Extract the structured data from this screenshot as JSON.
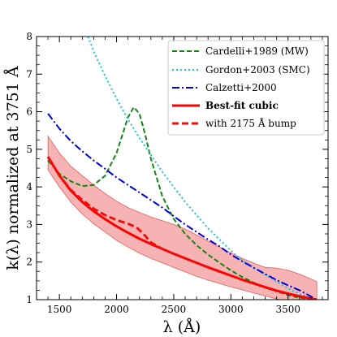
{
  "chart_data": {
    "type": "line",
    "xlabel": "λ (Å)",
    "ylabel": "k(λ) normalized at 3751 Å",
    "xlim": [
      1300,
      3850
    ],
    "ylim": [
      1,
      8
    ],
    "xticks": [
      1500,
      2000,
      2500,
      3000,
      3500
    ],
    "yticks": [
      1,
      2,
      3,
      4,
      5,
      6,
      7,
      8
    ],
    "legend_position": "top-right",
    "series": [
      {
        "name": "Cardelli+1989 (MW)",
        "color": "#118811",
        "style": "dashed",
        "x": [
          1400,
          1500,
          1600,
          1700,
          1800,
          1900,
          2000,
          2100,
          2150,
          2200,
          2250,
          2300,
          2400,
          2500,
          2600,
          2700,
          2800,
          2900,
          3000,
          3100,
          3200,
          3300,
          3400,
          3500,
          3600,
          3751
        ],
        "y": [
          4.7,
          4.35,
          4.15,
          4.02,
          4.05,
          4.3,
          4.9,
          5.85,
          6.12,
          5.95,
          5.4,
          4.75,
          3.75,
          3.15,
          2.75,
          2.45,
          2.2,
          1.98,
          1.78,
          1.6,
          1.45,
          1.33,
          1.22,
          1.12,
          1.05,
          1.0
        ]
      },
      {
        "name": "Gordon+2003 (SMC)",
        "color": "#18c8c8",
        "style": "dotted",
        "x": [
          1750,
          1800,
          1900,
          2000,
          2100,
          2200,
          2300,
          2400,
          2500,
          2600,
          2700,
          2800,
          2900,
          3000,
          3100,
          3200,
          3300,
          3400,
          3500,
          3600,
          3751
        ],
        "y": [
          8.0,
          7.6,
          6.95,
          6.35,
          5.8,
          5.3,
          4.85,
          4.4,
          4.0,
          3.6,
          3.25,
          2.9,
          2.6,
          2.3,
          2.05,
          1.85,
          1.66,
          1.48,
          1.3,
          1.15,
          1.0
        ]
      },
      {
        "name": "Calzetti+2000",
        "color": "#0000dd",
        "style": "dashdot",
        "x": [
          1400,
          1500,
          1600,
          1700,
          1800,
          1900,
          2000,
          2100,
          2200,
          2300,
          2400,
          2500,
          2600,
          2700,
          2800,
          2900,
          3000,
          3100,
          3200,
          3300,
          3400,
          3500,
          3600,
          3751
        ],
        "y": [
          5.95,
          5.55,
          5.22,
          4.95,
          4.7,
          4.48,
          4.25,
          4.05,
          3.85,
          3.65,
          3.45,
          3.22,
          3.0,
          2.8,
          2.6,
          2.42,
          2.2,
          2.02,
          1.85,
          1.68,
          1.52,
          1.38,
          1.25,
          1.0
        ]
      },
      {
        "name": "Best-fit cubic",
        "color": "#ff0000",
        "style": "solid",
        "x": [
          1400,
          1500,
          1600,
          1700,
          1800,
          1900,
          2000,
          2100,
          2200,
          2300,
          2400,
          2500,
          2600,
          2700,
          2800,
          2900,
          3000,
          3100,
          3200,
          3300,
          3400,
          3500,
          3600,
          3751
        ],
        "y": [
          4.8,
          4.3,
          3.9,
          3.6,
          3.35,
          3.14,
          2.95,
          2.78,
          2.62,
          2.48,
          2.35,
          2.22,
          2.1,
          1.98,
          1.86,
          1.75,
          1.64,
          1.53,
          1.43,
          1.33,
          1.24,
          1.16,
          1.09,
          1.0
        ]
      },
      {
        "name": "with 2175 Å bump",
        "color": "#ee1111",
        "style": "dashed",
        "x": [
          1400,
          1500,
          1600,
          1700,
          1800,
          1900,
          2000,
          2100,
          2175,
          2250,
          2300,
          2400,
          2500,
          2600,
          2700,
          2800
        ],
        "y": [
          4.8,
          4.3,
          3.92,
          3.65,
          3.42,
          3.25,
          3.12,
          3.02,
          2.92,
          2.7,
          2.52,
          2.35,
          2.22,
          2.1,
          1.98,
          1.86
        ]
      }
    ],
    "band": {
      "color": "#f08080",
      "x": [
        1400,
        1500,
        1600,
        1700,
        1800,
        1900,
        2000,
        2100,
        2200,
        2300,
        2400,
        2500,
        2600,
        2700,
        2800,
        2900,
        3000,
        3100,
        3200,
        3300,
        3400,
        3500,
        3600,
        3751
      ],
      "upper": [
        5.35,
        4.9,
        4.55,
        4.3,
        4.05,
        3.82,
        3.62,
        3.45,
        3.32,
        3.2,
        3.1,
        3.0,
        2.88,
        2.72,
        2.56,
        2.4,
        2.24,
        2.1,
        1.97,
        1.86,
        1.84,
        1.78,
        1.68,
        1.48
      ],
      "lower": [
        4.45,
        4.0,
        3.6,
        3.28,
        3.02,
        2.8,
        2.58,
        2.4,
        2.24,
        2.1,
        1.98,
        1.86,
        1.74,
        1.62,
        1.52,
        1.43,
        1.34,
        1.26,
        1.18,
        1.1,
        1.02,
        0.96,
        0.9,
        0.82
      ]
    }
  }
}
